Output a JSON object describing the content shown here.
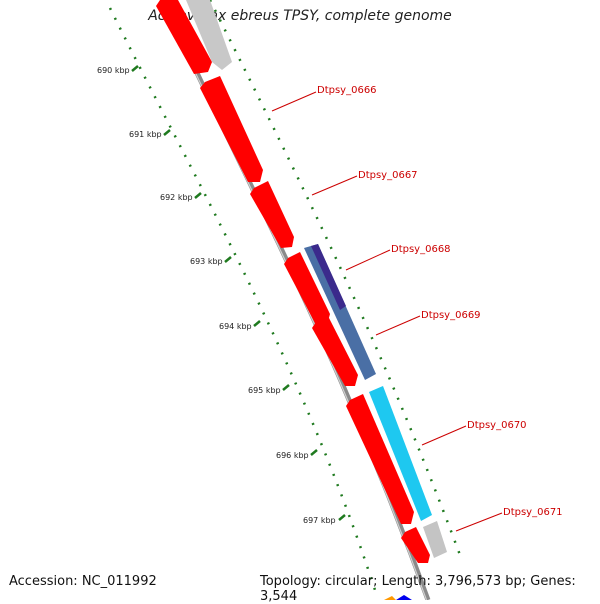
{
  "title": "Acidovorax ebreus TPSY, complete genome",
  "footer": {
    "accession": "Accession: NC_011992",
    "summary": "Topology: circular; Length: 3,796,573 bp; Genes: 3,544"
  },
  "ticks": [
    "690 kbp",
    "691 kbp",
    "692 kbp",
    "693 kbp",
    "694 kbp",
    "695 kbp",
    "696 kbp",
    "697 kbp"
  ],
  "genes": [
    {
      "name": "Dtpsy_0666",
      "color": "#ff0000"
    },
    {
      "name": "Dtpsy_0667",
      "color": "#ff0000"
    },
    {
      "name": "Dtpsy_0668",
      "color": "#4a6fa5"
    },
    {
      "name": "Dtpsy_0669",
      "color": "#ff0000"
    },
    {
      "name": "Dtpsy_0670",
      "color": "#1ec8f0"
    },
    {
      "name": "Dtpsy_0671",
      "color": "#ff0000"
    }
  ],
  "colors": {
    "cds": "#ff0000",
    "other": "#bdbdbd",
    "blue_feature": "#4a6fa5",
    "purple_feature": "#3b2a8c",
    "cyan_feature": "#1ec8f0",
    "ruler": "#1f7a1f",
    "gene_label": "#cc0000",
    "backbone": "#7a7a7a"
  },
  "icons": [
    "gene-arrow-icon"
  ]
}
